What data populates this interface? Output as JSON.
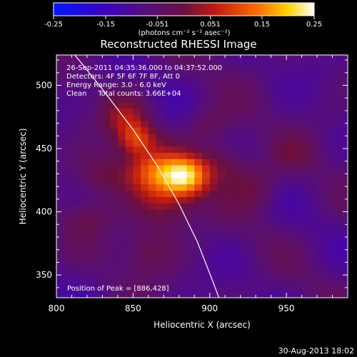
{
  "chart_data": {
    "type": "heatmap",
    "title": "Reconstructed RHESSI Image",
    "colorbar": {
      "ticks": [
        "-0.25",
        "-0.15",
        "-0.051",
        "0.051",
        "0.15",
        "0.25"
      ],
      "range": [
        -0.25,
        0.25
      ],
      "units_label": "(photons cm⁻² s⁻¹ asec⁻²)",
      "colormap": "blue-purple-red-yellow-white"
    },
    "xlabel": "Heliocentric X (arcsec)",
    "ylabel": "Heliocentric Y (arcsec)",
    "xlim": [
      800,
      990
    ],
    "ylim": [
      332,
      524
    ],
    "xticks": [
      "800",
      "850",
      "900",
      "950"
    ],
    "xtick_values": [
      800,
      850,
      900,
      950
    ],
    "yticks": [
      "350",
      "400",
      "450",
      "500"
    ],
    "ytick_values": [
      350,
      400,
      450,
      500
    ],
    "info_lines": [
      "26-Sep-2011 04:35:36.000 to 04:37:52.000",
      "Detectors: 4F 5F 6F 7F 8F, Att 0",
      "Energy Range: 3.0 - 6.0 keV",
      "Clean     Total counts: 3.66E+04"
    ],
    "peak_label": "Position of Peak = [886,428]",
    "peak": [
      886,
      428
    ],
    "sources": [
      {
        "x": 884,
        "y": 428,
        "amp": 0.25,
        "sigma": 11
      },
      {
        "x": 862,
        "y": 432,
        "amp": 0.16,
        "sigma": 13
      },
      {
        "x": 852,
        "y": 458,
        "amp": 0.15,
        "sigma": 9
      },
      {
        "x": 845,
        "y": 475,
        "amp": 0.09,
        "sigma": 10
      },
      {
        "x": 870,
        "y": 405,
        "amp": 0.1,
        "sigma": 14
      },
      {
        "x": 910,
        "y": 440,
        "amp": 0.08,
        "sigma": 12
      },
      {
        "x": 930,
        "y": 420,
        "amp": 0.07,
        "sigma": 12
      },
      {
        "x": 900,
        "y": 470,
        "amp": 0.06,
        "sigma": 10
      },
      {
        "x": 860,
        "y": 370,
        "amp": 0.06,
        "sigma": 12
      },
      {
        "x": 830,
        "y": 430,
        "amp": 0.08,
        "sigma": 12
      },
      {
        "x": 820,
        "y": 395,
        "amp": 0.05,
        "sigma": 10
      },
      {
        "x": 955,
        "y": 445,
        "amp": 0.04,
        "sigma": 10
      }
    ],
    "limb": [
      [
        812,
        524
      ],
      [
        830,
        497
      ],
      [
        850,
        465
      ],
      [
        866,
        436
      ],
      [
        880,
        406
      ],
      [
        892,
        376
      ],
      [
        902,
        345
      ],
      [
        906,
        332
      ]
    ],
    "limb_color": "#ffffff"
  },
  "footer": {
    "timestamp": "30-Aug-2013 18:02"
  }
}
